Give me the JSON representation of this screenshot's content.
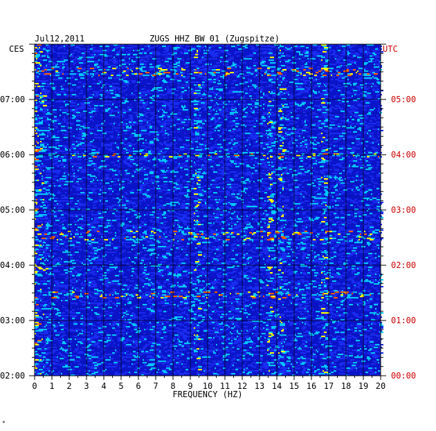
{
  "chart_data": {
    "type": "heatmap",
    "title": "ZUGS HHZ BW 01 (Zugspitze)",
    "date": "Jul12,2011",
    "left_timezone": "CES",
    "right_timezone": "UTC",
    "xlabel": "FREQUENCY (HZ)",
    "xlim": [
      0,
      20
    ],
    "x_ticks": [
      "0",
      "1",
      "2",
      "3",
      "4",
      "5",
      "6",
      "7",
      "8",
      "9",
      "10",
      "11",
      "12",
      "13",
      "14",
      "15",
      "16",
      "17",
      "18",
      "19",
      "20"
    ],
    "y_ticks_left": [
      "02:00",
      "03:00",
      "04:00",
      "05:00",
      "06:00",
      "07:00"
    ],
    "y_ticks_right": [
      "00:00",
      "01:00",
      "02:00",
      "03:00",
      "04:00",
      "05:00"
    ],
    "ylim_hours_utc": [
      0,
      6
    ],
    "colors": {
      "background": "#0a14c8",
      "low": "#1a2cf0",
      "mid": "#00c8ff",
      "high": "#ffff00",
      "peak": "#ff6000",
      "utc_label": "#cc0000"
    },
    "bright_rows_hours_utc": [
      5.55,
      5.47,
      4.0,
      2.6,
      2.5,
      1.5,
      1.45
    ],
    "spectral_lines_hz": [
      13.6,
      14.2,
      16.7,
      9.3
    ]
  },
  "footer_mark": "*"
}
